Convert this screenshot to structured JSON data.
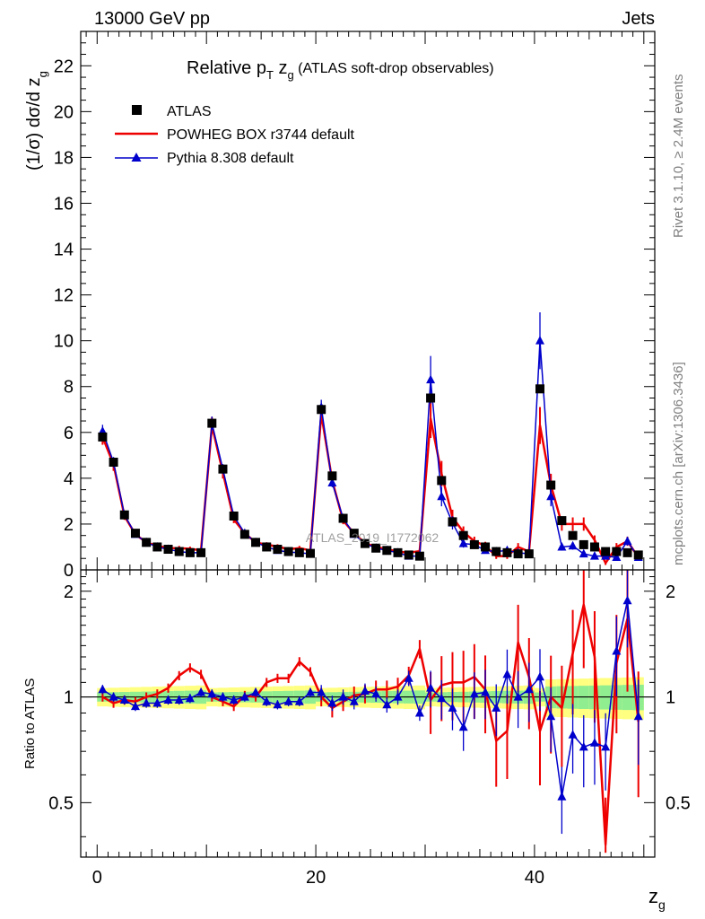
{
  "header": {
    "left": "13000 GeV pp",
    "right": "Jets"
  },
  "side_text": {
    "rivet": "Rivet 3.1.10, ≥ 2.4M events",
    "mcplots": "mcplots.cern.ch [arXiv:1306.3436]"
  },
  "watermark": "ATLAS_2019_I1772062",
  "title": {
    "main": "Relative p",
    "sub_t": "T",
    "mid": " z",
    "sub_g": "g",
    "tail": " (ATLAS soft-drop observables)"
  },
  "ylabel": "(1/σ) dσ/d z",
  "ylabel_sub": "g",
  "ratio_ylabel": "Ratio to ATLAS",
  "xlabel": "z",
  "xlabel_sub": "g",
  "legend": [
    {
      "name": "ATLAS",
      "color": "#000000",
      "marker": "square"
    },
    {
      "name": "POWHEG BOX r3744 default",
      "color": "#ee0000",
      "marker": "line"
    },
    {
      "name": "Pythia 8.308 default",
      "color": "#0000cc",
      "marker": "triangle"
    }
  ],
  "chart_data": {
    "type": "line",
    "x": [
      0.5,
      1.5,
      2.5,
      3.5,
      4.5,
      5.5,
      6.5,
      7.5,
      8.5,
      9.5,
      10.5,
      11.5,
      12.5,
      13.5,
      14.5,
      15.5,
      16.5,
      17.5,
      18.5,
      19.5,
      20.5,
      21.5,
      22.5,
      23.5,
      24.5,
      25.5,
      26.5,
      27.5,
      28.5,
      29.5,
      30.5,
      31.5,
      32.5,
      33.5,
      34.5,
      35.5,
      36.5,
      37.5,
      38.5,
      39.5,
      40.5,
      41.5,
      42.5,
      43.5,
      44.5,
      45.5,
      46.5,
      47.5,
      48.5,
      49.5
    ],
    "xlim": [
      -1.5,
      51
    ],
    "ylim": [
      0,
      23.5
    ],
    "ratio_ylim": [
      0.35,
      2.3
    ],
    "xticks": [
      0,
      20,
      40
    ],
    "yticks": [
      0,
      2,
      4,
      6,
      8,
      10,
      12,
      14,
      16,
      18,
      20,
      22
    ],
    "ratio_yticks": [
      0.5,
      1,
      2
    ],
    "series": [
      {
        "name": "ATLAS",
        "values": [
          5.8,
          4.7,
          2.4,
          1.6,
          1.2,
          1.0,
          0.9,
          0.8,
          0.75,
          0.75,
          6.4,
          4.4,
          2.35,
          1.55,
          1.2,
          1.0,
          0.9,
          0.8,
          0.75,
          0.72,
          7.0,
          4.1,
          2.25,
          1.6,
          1.15,
          0.95,
          0.85,
          0.75,
          0.65,
          0.6,
          7.5,
          3.9,
          2.1,
          1.5,
          1.1,
          1.0,
          0.8,
          0.75,
          0.7,
          0.7,
          7.9,
          3.7,
          2.15,
          1.5,
          1.1,
          1.0,
          0.8,
          0.8,
          0.75,
          0.65
        ]
      },
      {
        "name": "POWHEG BOX r3744 default",
        "values": [
          5.8,
          4.6,
          2.35,
          1.55,
          1.2,
          1.05,
          0.95,
          0.95,
          0.92,
          0.85,
          6.3,
          4.25,
          2.2,
          1.6,
          1.2,
          1.1,
          1.02,
          0.9,
          0.95,
          0.85,
          6.8,
          3.9,
          2.15,
          1.6,
          1.17,
          1.0,
          0.9,
          0.8,
          0.75,
          0.82,
          6.6,
          4.2,
          2.3,
          1.65,
          1.25,
          1.05,
          0.6,
          0.6,
          1.0,
          0.8,
          6.3,
          3.7,
          2.0,
          2.0,
          2.0,
          1.3,
          0.3,
          1.0,
          1.25,
          0.55
        ],
        "ratio": [
          1.0,
          0.96,
          0.98,
          0.97,
          1.0,
          1.02,
          1.06,
          1.15,
          1.21,
          1.16,
          1.0,
          0.97,
          0.94,
          1.01,
          1.0,
          1.1,
          1.13,
          1.13,
          1.26,
          1.18,
          1.0,
          0.93,
          0.97,
          1.01,
          1.02,
          1.05,
          1.05,
          1.07,
          1.15,
          1.37,
          0.98,
          1.08,
          1.1,
          1.1,
          1.14,
          1.05,
          0.75,
          0.8,
          1.43,
          1.14,
          0.8,
          1.0,
          0.93,
          1.33,
          1.83,
          1.3,
          0.38,
          1.25,
          1.67,
          0.85
        ]
      },
      {
        "name": "Pythia 8.308 default",
        "values": [
          6.05,
          4.7,
          2.4,
          1.55,
          1.2,
          1.0,
          0.9,
          0.8,
          0.75,
          0.75,
          6.4,
          4.4,
          2.35,
          1.6,
          1.2,
          1.0,
          0.85,
          0.78,
          0.75,
          0.7,
          7.1,
          3.8,
          2.25,
          1.55,
          1.15,
          0.95,
          0.85,
          0.75,
          0.6,
          0.6,
          8.3,
          3.2,
          2.05,
          1.15,
          1.1,
          0.85,
          0.8,
          0.85,
          0.75,
          0.7,
          10.0,
          3.2,
          1.0,
          1.05,
          0.7,
          0.6,
          0.6,
          0.55,
          1.25,
          0.55
        ],
        "ratio": [
          1.05,
          1.0,
          0.98,
          0.94,
          0.96,
          0.96,
          0.98,
          0.98,
          0.99,
          1.03,
          1.02,
          1.0,
          0.98,
          1.0,
          1.03,
          0.97,
          0.95,
          0.97,
          0.97,
          1.03,
          1.03,
          0.96,
          1.0,
          0.97,
          1.04,
          1.02,
          0.95,
          1.0,
          1.13,
          0.9,
          1.06,
          0.99,
          0.93,
          0.82,
          1.02,
          1.03,
          0.93,
          1.16,
          1.0,
          1.05,
          1.14,
          0.88,
          0.52,
          0.78,
          0.72,
          0.74,
          0.72,
          1.35,
          1.88,
          0.88
        ]
      }
    ]
  }
}
